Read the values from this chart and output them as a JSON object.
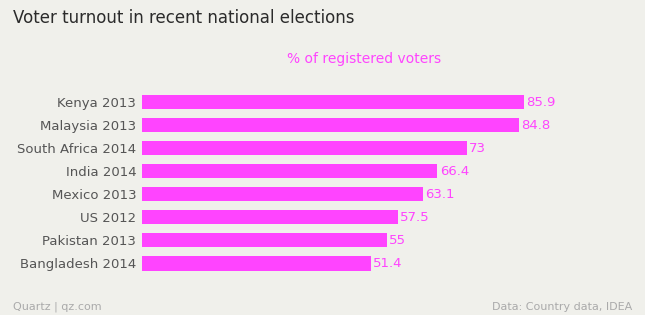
{
  "title": "Voter turnout in recent national elections",
  "subtitle": "% of registered voters",
  "categories": [
    "Kenya 2013",
    "Malaysia 2013",
    "South Africa 2014",
    "India 2014",
    "Mexico 2013",
    "US 2012",
    "Pakistan 2013",
    "Bangladesh 2014"
  ],
  "values": [
    85.9,
    84.8,
    73,
    66.4,
    63.1,
    57.5,
    55,
    51.4
  ],
  "bar_color": "#FF44FF",
  "label_color": "#FF44FF",
  "title_color": "#2b2b2b",
  "subtitle_color": "#FF44FF",
  "footer_left": "Quartz | qz.com",
  "footer_right": "Data: Country data, IDEA",
  "footer_color": "#aaaaaa",
  "background_color": "#f0f0eb",
  "xlim": [
    0,
    100
  ],
  "bar_height": 0.62,
  "title_fontsize": 12,
  "subtitle_fontsize": 10,
  "label_fontsize": 9.5,
  "tick_fontsize": 9.5,
  "footer_fontsize": 8
}
